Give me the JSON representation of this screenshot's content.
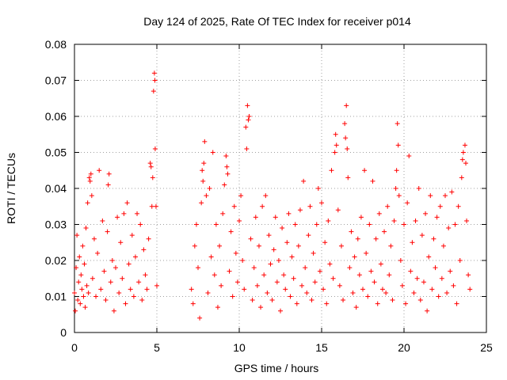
{
  "chart_data": {
    "type": "scatter",
    "title": "Day 124 of 2025, Rate Of TEC Index for receiver p014",
    "xlabel": "GPS time / hours",
    "ylabel": "ROTI / TECUs",
    "xlim": [
      0,
      25
    ],
    "ylim": [
      0,
      0.08
    ],
    "x_ticks": [
      0,
      5,
      10,
      15,
      20,
      25
    ],
    "x_tick_labels": [
      "0",
      "5",
      "10",
      "15",
      "20",
      "25"
    ],
    "y_ticks": [
      0,
      0.01,
      0.02,
      0.03,
      0.04,
      0.05,
      0.06,
      0.07,
      0.08
    ],
    "y_tick_labels": [
      "0",
      "0.01",
      "0.02",
      "0.03",
      "0.04",
      "0.05",
      "0.06",
      "0.07",
      "0.08"
    ],
    "grid": true,
    "marker": "+",
    "color": "#ff0000",
    "data_gap_hours": [
      5.05,
      7.1
    ],
    "series": [
      {
        "name": "ROTI",
        "points": [
          [
            0.0,
            0.011
          ],
          [
            0.05,
            0.006
          ],
          [
            0.1,
            0.018
          ],
          [
            0.15,
            0.027
          ],
          [
            0.2,
            0.009
          ],
          [
            0.25,
            0.014
          ],
          [
            0.3,
            0.021
          ],
          [
            0.35,
            0.008
          ],
          [
            0.4,
            0.016
          ],
          [
            0.45,
            0.012
          ],
          [
            0.5,
            0.024
          ],
          [
            0.55,
            0.01
          ],
          [
            0.6,
            0.019
          ],
          [
            0.65,
            0.007
          ],
          [
            0.7,
            0.029
          ],
          [
            0.75,
            0.013
          ],
          [
            0.8,
            0.036
          ],
          [
            0.85,
            0.011
          ],
          [
            0.9,
            0.043
          ],
          [
            0.95,
            0.042
          ],
          [
            1.0,
            0.044
          ],
          [
            1.05,
            0.038
          ],
          [
            1.1,
            0.015
          ],
          [
            1.2,
            0.026
          ],
          [
            1.3,
            0.01
          ],
          [
            1.4,
            0.022
          ],
          [
            1.5,
            0.045
          ],
          [
            1.6,
            0.012
          ],
          [
            1.7,
            0.031
          ],
          [
            1.8,
            0.017
          ],
          [
            1.9,
            0.009
          ],
          [
            2.0,
            0.028
          ],
          [
            2.05,
            0.041
          ],
          [
            2.1,
            0.044
          ],
          [
            2.2,
            0.014
          ],
          [
            2.3,
            0.02
          ],
          [
            2.4,
            0.006
          ],
          [
            2.5,
            0.018
          ],
          [
            2.6,
            0.032
          ],
          [
            2.7,
            0.011
          ],
          [
            2.8,
            0.025
          ],
          [
            2.9,
            0.015
          ],
          [
            3.0,
            0.033
          ],
          [
            3.1,
            0.008
          ],
          [
            3.2,
            0.036
          ],
          [
            3.3,
            0.019
          ],
          [
            3.4,
            0.012
          ],
          [
            3.5,
            0.027
          ],
          [
            3.6,
            0.01
          ],
          [
            3.7,
            0.021
          ],
          [
            3.8,
            0.033
          ],
          [
            3.9,
            0.014
          ],
          [
            4.0,
            0.03
          ],
          [
            4.1,
            0.009
          ],
          [
            4.2,
            0.023
          ],
          [
            4.3,
            0.016
          ],
          [
            4.4,
            0.012
          ],
          [
            4.5,
            0.026
          ],
          [
            4.6,
            0.047
          ],
          [
            4.65,
            0.046
          ],
          [
            4.7,
            0.035
          ],
          [
            4.75,
            0.043
          ],
          [
            4.8,
            0.067
          ],
          [
            4.85,
            0.072
          ],
          [
            4.88,
            0.07
          ],
          [
            4.9,
            0.051
          ],
          [
            4.95,
            0.035
          ],
          [
            5.0,
            0.013
          ],
          [
            7.1,
            0.012
          ],
          [
            7.2,
            0.008
          ],
          [
            7.3,
            0.024
          ],
          [
            7.4,
            0.03
          ],
          [
            7.5,
            0.018
          ],
          [
            7.6,
            0.004
          ],
          [
            7.7,
            0.036
          ],
          [
            7.75,
            0.045
          ],
          [
            7.8,
            0.042
          ],
          [
            7.85,
            0.047
          ],
          [
            7.9,
            0.053
          ],
          [
            8.0,
            0.038
          ],
          [
            8.1,
            0.011
          ],
          [
            8.2,
            0.04
          ],
          [
            8.3,
            0.021
          ],
          [
            8.4,
            0.05
          ],
          [
            8.5,
            0.016
          ],
          [
            8.6,
            0.03
          ],
          [
            8.7,
            0.007
          ],
          [
            8.8,
            0.024
          ],
          [
            8.9,
            0.013
          ],
          [
            9.0,
            0.033
          ],
          [
            9.1,
            0.041
          ],
          [
            9.2,
            0.049
          ],
          [
            9.25,
            0.046
          ],
          [
            9.3,
            0.044
          ],
          [
            9.4,
            0.017
          ],
          [
            9.5,
            0.028
          ],
          [
            9.6,
            0.01
          ],
          [
            9.7,
            0.035
          ],
          [
            9.8,
            0.022
          ],
          [
            9.9,
            0.014
          ],
          [
            10.0,
            0.031
          ],
          [
            10.1,
            0.038
          ],
          [
            10.2,
            0.02
          ],
          [
            10.3,
            0.012
          ],
          [
            10.4,
            0.057
          ],
          [
            10.45,
            0.051
          ],
          [
            10.5,
            0.063
          ],
          [
            10.55,
            0.059
          ],
          [
            10.6,
            0.06
          ],
          [
            10.7,
            0.026
          ],
          [
            10.8,
            0.009
          ],
          [
            10.9,
            0.018
          ],
          [
            11.0,
            0.032
          ],
          [
            11.1,
            0.013
          ],
          [
            11.2,
            0.024
          ],
          [
            11.3,
            0.007
          ],
          [
            11.4,
            0.035
          ],
          [
            11.5,
            0.016
          ],
          [
            11.6,
            0.038
          ],
          [
            11.7,
            0.011
          ],
          [
            11.8,
            0.027
          ],
          [
            11.9,
            0.019
          ],
          [
            12.0,
            0.009
          ],
          [
            12.1,
            0.023
          ],
          [
            12.2,
            0.032
          ],
          [
            12.3,
            0.014
          ],
          [
            12.4,
            0.02
          ],
          [
            12.5,
            0.006
          ],
          [
            12.6,
            0.029
          ],
          [
            12.7,
            0.016
          ],
          [
            12.8,
            0.012
          ],
          [
            12.9,
            0.025
          ],
          [
            13.0,
            0.033
          ],
          [
            13.1,
            0.01
          ],
          [
            13.2,
            0.021
          ],
          [
            13.3,
            0.015
          ],
          [
            13.4,
            0.03
          ],
          [
            13.5,
            0.008
          ],
          [
            13.6,
            0.024
          ],
          [
            13.7,
            0.034
          ],
          [
            13.8,
            0.013
          ],
          [
            13.9,
            0.042
          ],
          [
            14.0,
            0.018
          ],
          [
            14.1,
            0.011
          ],
          [
            14.2,
            0.027
          ],
          [
            14.3,
            0.035
          ],
          [
            14.4,
            0.009
          ],
          [
            14.5,
            0.022
          ],
          [
            14.6,
            0.014
          ],
          [
            14.7,
            0.03
          ],
          [
            14.8,
            0.04
          ],
          [
            14.9,
            0.017
          ],
          [
            15.0,
            0.036
          ],
          [
            15.1,
            0.012
          ],
          [
            15.2,
            0.025
          ],
          [
            15.3,
            0.008
          ],
          [
            15.4,
            0.031
          ],
          [
            15.5,
            0.019
          ],
          [
            15.6,
            0.045
          ],
          [
            15.7,
            0.015
          ],
          [
            15.8,
            0.05
          ],
          [
            15.85,
            0.055
          ],
          [
            15.9,
            0.052
          ],
          [
            16.0,
            0.034
          ],
          [
            16.1,
            0.013
          ],
          [
            16.2,
            0.024
          ],
          [
            16.3,
            0.009
          ],
          [
            16.4,
            0.058
          ],
          [
            16.45,
            0.054
          ],
          [
            16.5,
            0.063
          ],
          [
            16.55,
            0.051
          ],
          [
            16.6,
            0.043
          ],
          [
            16.7,
            0.018
          ],
          [
            16.8,
            0.028
          ],
          [
            16.9,
            0.011
          ],
          [
            17.0,
            0.021
          ],
          [
            17.1,
            0.007
          ],
          [
            17.2,
            0.026
          ],
          [
            17.3,
            0.016
          ],
          [
            17.4,
            0.032
          ],
          [
            17.5,
            0.012
          ],
          [
            17.6,
            0.045
          ],
          [
            17.7,
            0.022
          ],
          [
            17.8,
            0.01
          ],
          [
            17.9,
            0.03
          ],
          [
            18.0,
            0.017
          ],
          [
            18.1,
            0.042
          ],
          [
            18.2,
            0.014
          ],
          [
            18.3,
            0.026
          ],
          [
            18.4,
            0.008
          ],
          [
            18.5,
            0.033
          ],
          [
            18.6,
            0.019
          ],
          [
            18.7,
            0.012
          ],
          [
            18.8,
            0.028
          ],
          [
            18.9,
            0.011
          ],
          [
            19.0,
            0.035
          ],
          [
            19.1,
            0.016
          ],
          [
            19.2,
            0.024
          ],
          [
            19.3,
            0.009
          ],
          [
            19.4,
            0.031
          ],
          [
            19.5,
            0.04
          ],
          [
            19.55,
            0.045
          ],
          [
            19.6,
            0.058
          ],
          [
            19.65,
            0.052
          ],
          [
            19.7,
            0.038
          ],
          [
            19.8,
            0.02
          ],
          [
            19.9,
            0.013
          ],
          [
            20.0,
            0.03
          ],
          [
            20.1,
            0.008
          ],
          [
            20.2,
            0.036
          ],
          [
            20.3,
            0.049
          ],
          [
            20.4,
            0.017
          ],
          [
            20.5,
            0.025
          ],
          [
            20.6,
            0.011
          ],
          [
            20.7,
            0.031
          ],
          [
            20.8,
            0.015
          ],
          [
            20.9,
            0.04
          ],
          [
            21.0,
            0.009
          ],
          [
            21.1,
            0.027
          ],
          [
            21.2,
            0.014
          ],
          [
            21.3,
            0.033
          ],
          [
            21.4,
            0.006
          ],
          [
            21.5,
            0.021
          ],
          [
            21.6,
            0.038
          ],
          [
            21.7,
            0.012
          ],
          [
            21.8,
            0.026
          ],
          [
            21.9,
            0.018
          ],
          [
            22.0,
            0.032
          ],
          [
            22.1,
            0.01
          ],
          [
            22.2,
            0.035
          ],
          [
            22.3,
            0.015
          ],
          [
            22.4,
            0.024
          ],
          [
            22.5,
            0.038
          ],
          [
            22.6,
            0.011
          ],
          [
            22.7,
            0.029
          ],
          [
            22.8,
            0.017
          ],
          [
            22.9,
            0.039
          ],
          [
            23.0,
            0.013
          ],
          [
            23.1,
            0.03
          ],
          [
            23.2,
            0.008
          ],
          [
            23.3,
            0.035
          ],
          [
            23.4,
            0.02
          ],
          [
            23.5,
            0.043
          ],
          [
            23.55,
            0.048
          ],
          [
            23.6,
            0.05
          ],
          [
            23.7,
            0.052
          ],
          [
            23.75,
            0.047
          ],
          [
            23.8,
            0.031
          ],
          [
            23.9,
            0.016
          ],
          [
            24.0,
            0.012
          ]
        ]
      }
    ]
  }
}
